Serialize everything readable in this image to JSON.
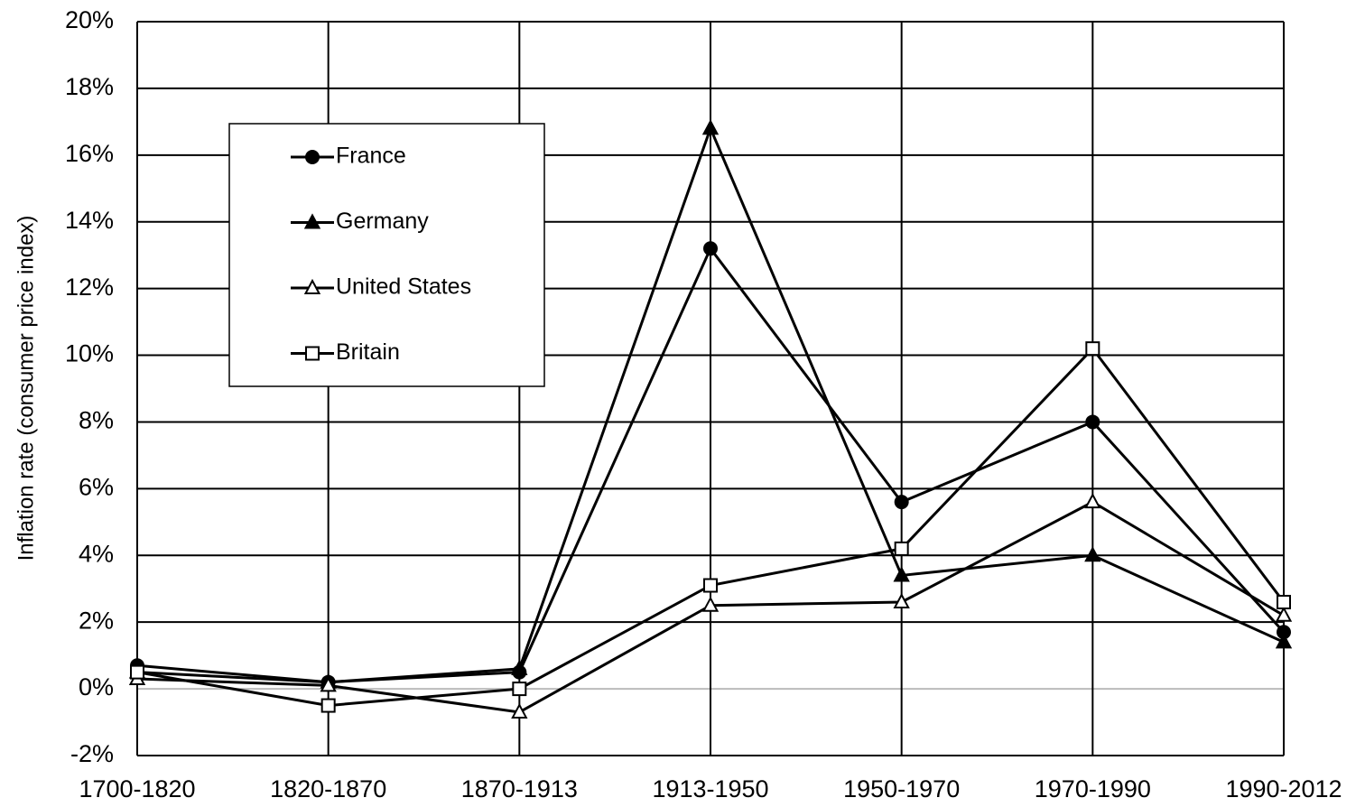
{
  "chart_data": {
    "type": "line",
    "y_label": "Inflation rate (consumer price index)",
    "categories": [
      "1700-1820",
      "1820-1870",
      "1870-1913",
      "1913-1950",
      "1950-1970",
      "1970-1990",
      "1990-2012"
    ],
    "series": [
      {
        "name": "France",
        "color": "#000000",
        "marker": "circle",
        "marker_fill": "#000000",
        "values": [
          0.7,
          0.2,
          0.5,
          13.2,
          5.6,
          8.0,
          1.7
        ]
      },
      {
        "name": "Germany",
        "color": "#000000",
        "marker": "triangle",
        "marker_fill": "#000000",
        "values": [
          0.5,
          0.2,
          0.6,
          16.8,
          3.4,
          4.0,
          1.4
        ]
      },
      {
        "name": "United States",
        "color": "#000000",
        "marker": "triangle",
        "marker_fill": "#ffffff",
        "values": [
          0.3,
          0.1,
          -0.7,
          2.5,
          2.6,
          5.6,
          2.2
        ]
      },
      {
        "name": "Britain",
        "color": "#000000",
        "marker": "square",
        "marker_fill": "#ffffff",
        "values": [
          0.5,
          -0.5,
          0.0,
          3.1,
          4.2,
          10.2,
          2.6
        ]
      }
    ],
    "ylim": [
      -2,
      20
    ],
    "yticks": [
      {
        "value": -2,
        "label": "-2%"
      },
      {
        "value": 0,
        "label": "0%"
      },
      {
        "value": 2,
        "label": "2%"
      },
      {
        "value": 4,
        "label": "4%"
      },
      {
        "value": 6,
        "label": "6%"
      },
      {
        "value": 8,
        "label": "8%"
      },
      {
        "value": 10,
        "label": "10%"
      },
      {
        "value": 12,
        "label": "12%"
      },
      {
        "value": 14,
        "label": "14%"
      },
      {
        "value": 16,
        "label": "16%"
      },
      {
        "value": 18,
        "label": "18%"
      },
      {
        "value": 20,
        "label": "20%"
      }
    ],
    "grid": true,
    "legend": "upper left"
  }
}
